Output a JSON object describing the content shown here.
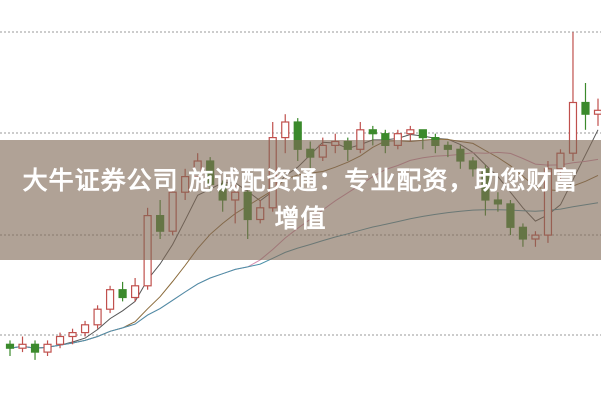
{
  "headline": "大牛证券公司 施诚配资通：专业配资，助您财富增值",
  "headline_line1": "大牛证券公司 施诚配资通：专业配资，助您财富",
  "headline_line2": "增值",
  "colors": {
    "up": "#c0504d",
    "down": "#3b8a2c",
    "grid": "#9a9a9a",
    "ma5": "#555555",
    "ma10": "#8a6a3a",
    "ma20": "#d48fb0",
    "ma60": "#4a90a8"
  },
  "chart_data": {
    "type": "candlestick",
    "title": "",
    "xlabel": "",
    "ylabel": "",
    "ylim": [
      0,
      100
    ],
    "grid": true,
    "moving_averages": [
      5,
      10,
      20,
      60
    ],
    "candles_ohlc": [
      [
        13,
        14,
        10,
        12
      ],
      [
        12,
        15,
        11,
        13
      ],
      [
        13,
        14,
        9,
        11
      ],
      [
        11,
        14,
        10,
        13
      ],
      [
        13,
        16,
        12,
        15
      ],
      [
        15,
        17,
        13,
        16
      ],
      [
        16,
        19,
        15,
        18
      ],
      [
        18,
        23,
        17,
        22
      ],
      [
        22,
        28,
        21,
        27
      ],
      [
        27,
        29,
        24,
        25
      ],
      [
        25,
        30,
        24,
        28
      ],
      [
        28,
        48,
        27,
        46
      ],
      [
        46,
        50,
        40,
        42
      ],
      [
        42,
        53,
        41,
        52
      ],
      [
        52,
        58,
        50,
        56
      ],
      [
        56,
        62,
        54,
        60
      ],
      [
        60,
        61,
        52,
        54
      ],
      [
        54,
        55,
        47,
        50
      ],
      [
        50,
        54,
        44,
        52
      ],
      [
        52,
        53,
        40,
        45
      ],
      [
        45,
        50,
        44,
        48
      ],
      [
        48,
        70,
        47,
        66
      ],
      [
        66,
        72,
        62,
        70
      ],
      [
        70,
        71,
        60,
        63
      ],
      [
        63,
        65,
        58,
        61
      ],
      [
        61,
        66,
        60,
        64
      ],
      [
        64,
        67,
        62,
        65
      ],
      [
        65,
        66,
        60,
        63
      ],
      [
        63,
        70,
        62,
        68
      ],
      [
        68,
        69,
        64,
        67
      ],
      [
        67,
        68,
        62,
        64
      ],
      [
        64,
        68,
        63,
        67
      ],
      [
        67,
        69,
        65,
        68
      ],
      [
        68,
        68,
        63,
        66
      ],
      [
        66,
        67,
        62,
        64
      ],
      [
        64,
        65,
        61,
        63
      ],
      [
        63,
        64,
        58,
        60
      ],
      [
        60,
        61,
        56,
        58
      ],
      [
        58,
        59,
        46,
        50
      ],
      [
        50,
        52,
        47,
        49
      ],
      [
        49,
        50,
        41,
        43
      ],
      [
        43,
        44,
        38,
        40
      ],
      [
        40,
        42,
        38,
        41
      ],
      [
        41,
        60,
        39,
        58
      ],
      [
        58,
        63,
        55,
        62
      ],
      [
        62,
        93,
        60,
        75
      ],
      [
        75,
        80,
        68,
        72
      ],
      [
        72,
        76,
        69,
        73
      ]
    ]
  }
}
